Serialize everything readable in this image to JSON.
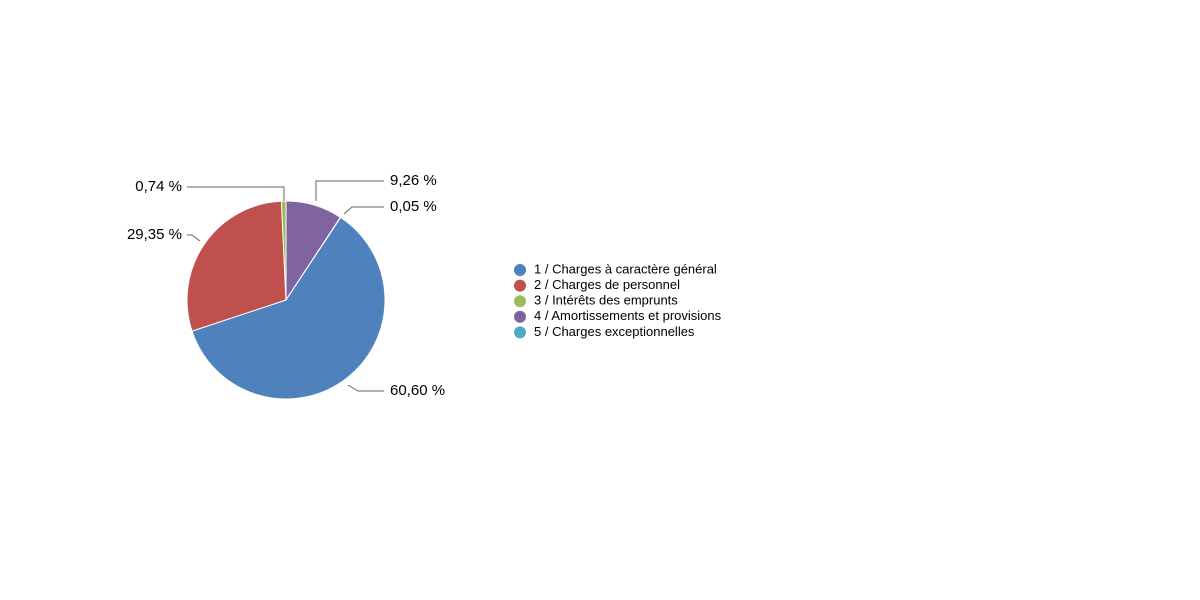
{
  "chart_data": {
    "type": "pie",
    "categories": [
      "1 / Charges à caractère général",
      "2 / Charges de personnel",
      "3 / Intérêts des emprunts",
      "4 / Amortissements et provisions",
      "5 / Charges exceptionnelles"
    ],
    "values": [
      60.6,
      29.35,
      0.74,
      9.26,
      0.05
    ],
    "value_labels": [
      "60,60 %",
      "29,35 %",
      "0,74 %",
      "9,26 %",
      "0,05 %"
    ],
    "colors": [
      "#4f81bd",
      "#c0504d",
      "#9bbb59",
      "#8064a2",
      "#4bacc6"
    ],
    "legend": "right"
  }
}
